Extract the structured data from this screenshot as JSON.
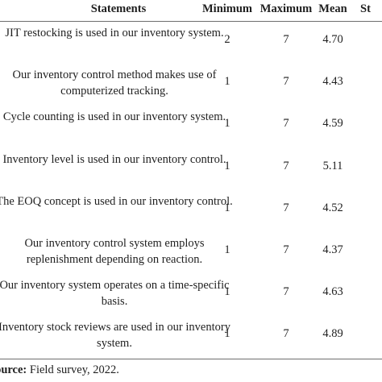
{
  "table": {
    "headers": {
      "statements": "Statements",
      "minimum": "Minimum",
      "maximum": "Maximum",
      "mean": "Mean",
      "sd": "St"
    },
    "rows": [
      {
        "statement": "JIT restocking is used in our inventory system.",
        "minimum": "2",
        "maximum": "7",
        "mean": "4.70"
      },
      {
        "statement": "Our inventory control method makes use of computerized tracking.",
        "minimum": "1",
        "maximum": "7",
        "mean": "4.43"
      },
      {
        "statement": "Cycle counting is used in our inventory system.",
        "minimum": "1",
        "maximum": "7",
        "mean": "4.59"
      },
      {
        "statement": "Inventory level is used in our inventory control.",
        "minimum": "1",
        "maximum": "7",
        "mean": "5.11"
      },
      {
        "statement": "The EOQ concept is used in our inventory control.",
        "minimum": "1",
        "maximum": "7",
        "mean": "4.52"
      },
      {
        "statement": "Our inventory control system employs replenishment depending on reaction.",
        "minimum": "1",
        "maximum": "7",
        "mean": "4.37"
      },
      {
        "statement": "Our inventory system operates on a time-specific basis.",
        "minimum": "1",
        "maximum": "7",
        "mean": "4.63"
      },
      {
        "statement": "Inventory stock reviews are used in our inventory system.",
        "minimum": "1",
        "maximum": "7",
        "mean": "4.89"
      }
    ]
  },
  "source": {
    "label": "Source:",
    "text": "Field survey, 2022."
  }
}
